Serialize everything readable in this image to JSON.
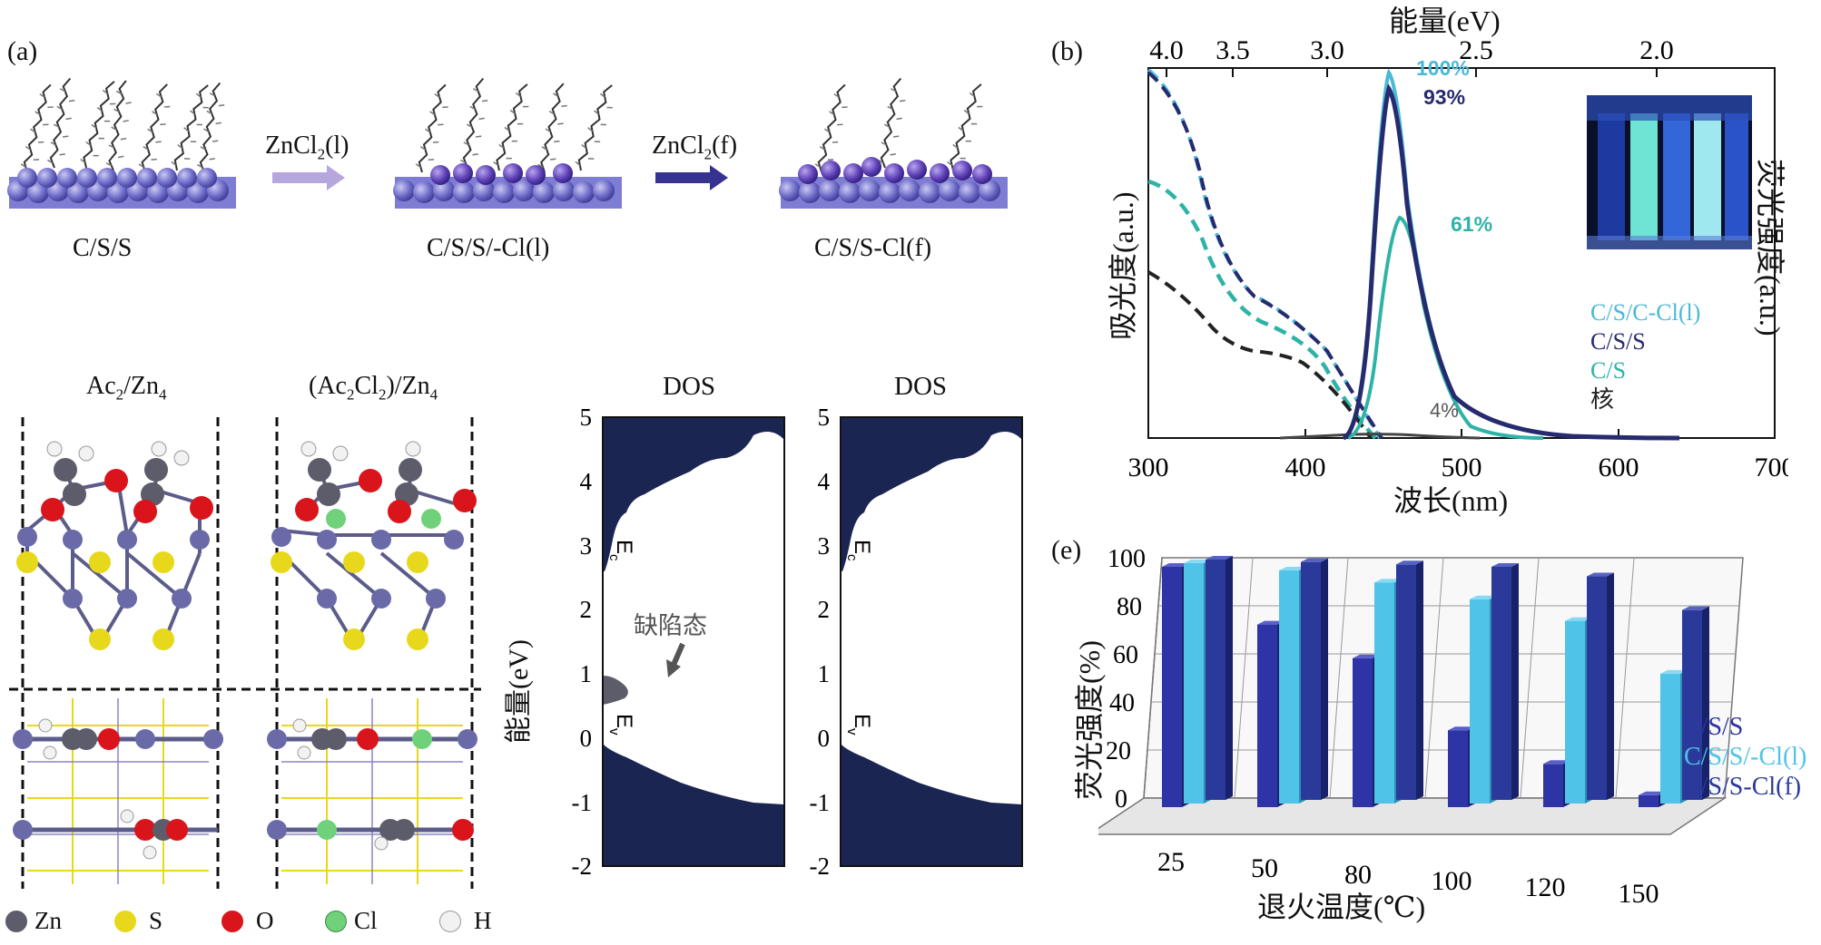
{
  "panel_a": {
    "tag": "(a)",
    "stages": [
      {
        "label": "C/S/S"
      },
      {
        "label": "C/S/S/-Cl(l)"
      },
      {
        "label": "C/S/S-Cl(f)"
      }
    ],
    "arrows": [
      {
        "base": "ZnCl",
        "sub": "2",
        "suffix": "(l)",
        "color": "#b7a6dd"
      },
      {
        "base": "ZnCl",
        "sub": "2",
        "suffix": "(f)",
        "color": "#35338f"
      }
    ],
    "structures": [
      {
        "title_html": "Ac<sub>2</sub>/Zn<sub>4</sub>"
      },
      {
        "title_html": "(Ac<sub>2</sub>Cl<sub>2</sub>)/Zn<sub>4</sub>"
      }
    ],
    "legend": [
      {
        "label": "Zn",
        "color": "#5c5c6a"
      },
      {
        "label": "S",
        "color": "#e8d81c"
      },
      {
        "label": "O",
        "color": "#d9141b"
      },
      {
        "label": "Cl",
        "color": "#6fd27a"
      },
      {
        "label": "H",
        "color": "#f2f2f2"
      }
    ]
  },
  "panel_dos": {
    "ylabel": "能量(eV)",
    "panels": [
      {
        "title": "DOS",
        "ec": "E",
        "ec_sub": "c",
        "ev": "E",
        "ev_sub": "v",
        "defect_label": "缺陷态"
      },
      {
        "title": "DOS",
        "ec": "E",
        "ec_sub": "c",
        "ev": "E",
        "ev_sub": "v"
      }
    ],
    "yticks": [
      "5",
      "4",
      "3",
      "2",
      "1",
      "0",
      "-1",
      "-2"
    ],
    "fill_color": "#1a2552"
  },
  "panel_b": {
    "tag": "(b)",
    "top_axis_label": "能量(eV)",
    "top_ticks": [
      "4.0",
      "3.5",
      "3.0",
      "2.5",
      "2.0"
    ],
    "bottom_ticks": [
      "300",
      "400",
      "500",
      "600",
      "700"
    ],
    "xlabel": "波长(nm)",
    "ylabel_left": "吸光度(a.u.)",
    "ylabel_right": "荧光强度(a.u.)",
    "pl_labels": [
      "100%",
      "93%",
      "61%",
      "4%"
    ],
    "legend": [
      {
        "label": "C/S/C-Cl(l)",
        "color": "#4bb8d8"
      },
      {
        "label": "C/S/S",
        "color": "#262a6e"
      },
      {
        "label": "C/S",
        "color": "#2fb3a6"
      },
      {
        "label": "核",
        "color": "#222222"
      }
    ],
    "colors": {
      "cscl": "#4bb8d8",
      "css": "#262a6e",
      "cs": "#2fb3a6",
      "core": "#222222"
    }
  },
  "panel_e": {
    "tag": "(e)",
    "ylabel": "荧光强度(%)",
    "xlabel": "退火温度(℃)",
    "yticks": [
      "100",
      "80",
      "60",
      "40",
      "20",
      "0"
    ],
    "legend": [
      {
        "label": "C/S/S",
        "color": "#2e34a5"
      },
      {
        "label": "C/S/S/-Cl(l)",
        "color": "#4fc3e8"
      },
      {
        "label": "C/S/S-Cl(f)",
        "color": "#2b3a9a"
      }
    ]
  },
  "chart_data": [
    {
      "type": "line",
      "panel": "(b)",
      "xlabel": "波长(nm)",
      "ylabel": "吸光度(a.u.)",
      "xlim": [
        300,
        700
      ],
      "series": [
        {
          "name": "C/S/C-Cl(l)",
          "style": "solid",
          "x": [
            420,
            440,
            450,
            456,
            462,
            470,
            480,
            500,
            520,
            550,
            600
          ],
          "y": [
            0,
            0.35,
            0.85,
            1.0,
            0.92,
            0.7,
            0.45,
            0.2,
            0.08,
            0.02,
            0
          ]
        },
        {
          "name": "C/S/S",
          "style": "solid",
          "x": [
            420,
            440,
            450,
            456,
            462,
            470,
            480,
            500,
            520,
            550,
            600
          ],
          "y": [
            0,
            0.33,
            0.8,
            0.93,
            0.86,
            0.66,
            0.42,
            0.18,
            0.07,
            0.02,
            0
          ]
        },
        {
          "name": "C/S",
          "style": "solid",
          "x": [
            420,
            440,
            450,
            460,
            470,
            480,
            500,
            520,
            550
          ],
          "y": [
            0,
            0.2,
            0.45,
            0.61,
            0.5,
            0.3,
            0.12,
            0.04,
            0
          ]
        },
        {
          "name": "核",
          "style": "solid",
          "x": [
            420,
            450,
            460,
            480,
            500
          ],
          "y": [
            0,
            0.03,
            0.04,
            0.02,
            0
          ]
        }
      ],
      "pl_efficiency_percent": {
        "C/S/C-Cl(l)": 100,
        "C/S/S": 93,
        "C/S": 61,
        "核": 4
      }
    },
    {
      "type": "bar",
      "panel": "(e)",
      "xlabel": "退火温度(℃)",
      "ylabel": "荧光强度(%)",
      "ylim": [
        0,
        100
      ],
      "categories": [
        "25",
        "50",
        "80",
        "100",
        "120",
        "150"
      ],
      "series": [
        {
          "name": "C/S/S",
          "values": [
            100,
            76,
            62,
            32,
            18,
            5
          ]
        },
        {
          "name": "C/S/S/-Cl(l)",
          "values": [
            100,
            97,
            92,
            85,
            76,
            54
          ]
        },
        {
          "name": "C/S/S-Cl(f)",
          "values": [
            100,
            99,
            98,
            97,
            93,
            79
          ]
        }
      ]
    }
  ]
}
